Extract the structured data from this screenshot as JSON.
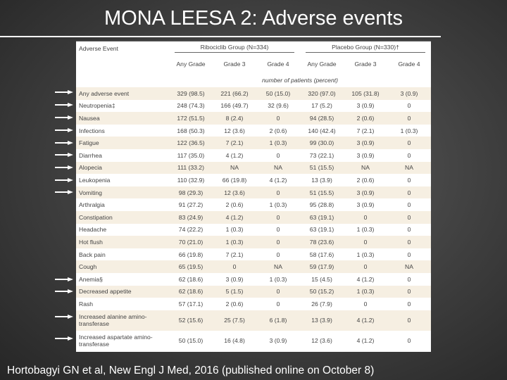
{
  "header": {
    "title": "MONA LEESA 2: Adverse events"
  },
  "table": {
    "group_headers": [
      "Adverse Event",
      "Ribociclib Group (N=334)",
      "Placebo Group (N=330)†"
    ],
    "columns": [
      "Any Grade",
      "Grade 3",
      "Grade 4",
      "Any Grade",
      "Grade 3",
      "Grade 4"
    ],
    "unit_note": "number of patients (percent)",
    "rows": [
      [
        "Any adverse event",
        "329 (98.5)",
        "221 (66.2)",
        "50 (15.0)",
        "320 (97.0)",
        "105 (31.8)",
        "3 (0.9)"
      ],
      [
        "Neutropenia‡",
        "248 (74.3)",
        "166 (49.7)",
        "32 (9.6)",
        "17 (5.2)",
        "3 (0.9)",
        "0"
      ],
      [
        "Nausea",
        "172 (51.5)",
        "8 (2.4)",
        "0",
        "94 (28.5)",
        "2 (0.6)",
        "0"
      ],
      [
        "Infections",
        "168 (50.3)",
        "12 (3.6)",
        "2 (0.6)",
        "140 (42.4)",
        "7 (2.1)",
        "1 (0.3)"
      ],
      [
        "Fatigue",
        "122 (36.5)",
        "7 (2.1)",
        "1 (0.3)",
        "99 (30.0)",
        "3 (0.9)",
        "0"
      ],
      [
        "Diarrhea",
        "117 (35.0)",
        "4 (1.2)",
        "0",
        "73 (22.1)",
        "3 (0.9)",
        "0"
      ],
      [
        "Alopecia",
        "111 (33.2)",
        "NA",
        "NA",
        "51 (15.5)",
        "NA",
        "NA"
      ],
      [
        "Leukopenia",
        "110 (32.9)",
        "66 (19.8)",
        "4 (1.2)",
        "13 (3.9)",
        "2 (0.6)",
        "0"
      ],
      [
        "Vomiting",
        "98 (29.3)",
        "12 (3.6)",
        "0",
        "51 (15.5)",
        "3 (0.9)",
        "0"
      ],
      [
        "Arthralgia",
        "91 (27.2)",
        "2 (0.6)",
        "1 (0.3)",
        "95 (28.8)",
        "3 (0.9)",
        "0"
      ],
      [
        "Constipation",
        "83 (24.9)",
        "4 (1.2)",
        "0",
        "63 (19.1)",
        "0",
        "0"
      ],
      [
        "Headache",
        "74 (22.2)",
        "1 (0.3)",
        "0",
        "63 (19.1)",
        "1 (0.3)",
        "0"
      ],
      [
        "Hot flush",
        "70 (21.0)",
        "1 (0.3)",
        "0",
        "78 (23.6)",
        "0",
        "0"
      ],
      [
        "Back pain",
        "66 (19.8)",
        "7 (2.1)",
        "0",
        "58 (17.6)",
        "1 (0.3)",
        "0"
      ],
      [
        "Cough",
        "65 (19.5)",
        "0",
        "NA",
        "59 (17.9)",
        "0",
        "NA"
      ],
      [
        "Anemia§",
        "62 (18.6)",
        "3 (0.9)",
        "1 (0.3)",
        "15 (4.5)",
        "4 (1.2)",
        "0"
      ],
      [
        "Decreased appetite",
        "62 (18.6)",
        "5 (1.5)",
        "0",
        "50 (15.2)",
        "1 (0.3)",
        "0"
      ],
      [
        "Rash",
        "57 (17.1)",
        "2 (0.6)",
        "0",
        "26 (7.9)",
        "0",
        "0"
      ],
      [
        "Increased alanine amino-transferase",
        "52 (15.6)",
        "25 (7.5)",
        "6 (1.8)",
        "13 (3.9)",
        "4 (1.2)",
        "0"
      ],
      [
        "Increased aspartate amino-transferase",
        "50 (15.0)",
        "16 (4.8)",
        "3 (0.9)",
        "12 (3.6)",
        "4 (1.2)",
        "0"
      ]
    ]
  },
  "footer": {
    "citation": "Hortobagyi GN et al, New Engl J Med, 2016 (published online on October 8)"
  }
}
